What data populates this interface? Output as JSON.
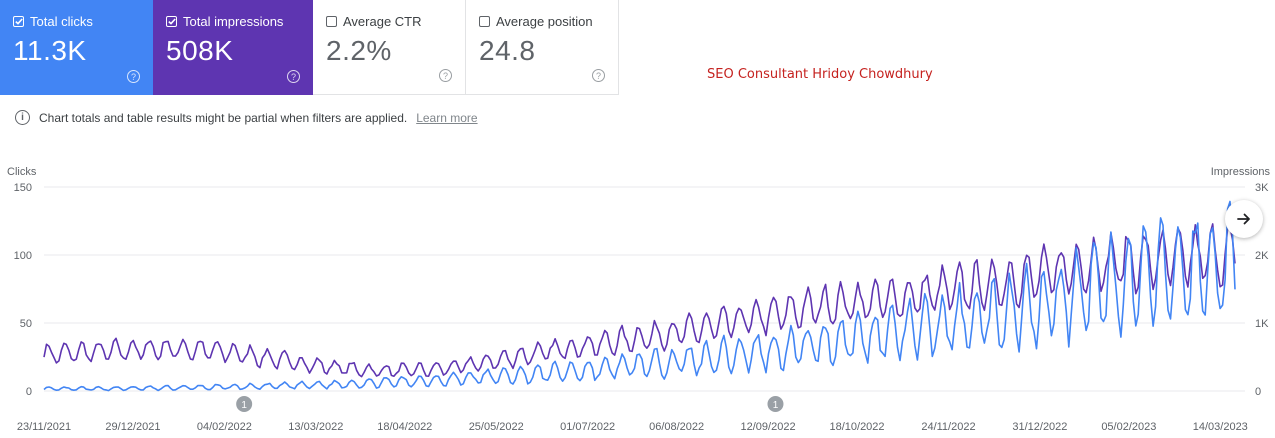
{
  "cards": [
    {
      "id": "clicks",
      "label": "Total clicks",
      "value": "11.3K",
      "checked": true
    },
    {
      "id": "impressions",
      "label": "Total impressions",
      "value": "508K",
      "checked": true
    },
    {
      "id": "ctr",
      "label": "Average CTR",
      "value": "2.2%",
      "checked": false
    },
    {
      "id": "position",
      "label": "Average position",
      "value": "24.8",
      "checked": false
    }
  ],
  "help_glyph": "?",
  "watermark": "SEO Consultant Hridoy Chowdhury",
  "notice": {
    "text": "Chart totals and table results might be partial when filters are applied.",
    "link": "Learn more",
    "icon": "info-icon"
  },
  "next_button": {
    "icon": "arrow-right-icon"
  },
  "colors": {
    "clicks": "#4285f4",
    "impressions": "#5e35b1",
    "grid": "#e8eaed",
    "axis_text": "#5f6368",
    "annotation": "#9aa0a6"
  },
  "chart_data": {
    "type": "line",
    "ylabel_left": "Clicks",
    "ylabel_right": "Impressions",
    "left_ticks": [
      "0",
      "50",
      "100",
      "150"
    ],
    "right_ticks": [
      "0",
      "1K",
      "2K",
      "3K"
    ],
    "ylim_left": [
      0,
      150
    ],
    "ylim_right": [
      0,
      3000
    ],
    "grid": true,
    "x_ticks": [
      "23/11/2021",
      "29/12/2021",
      "04/02/2022",
      "13/03/2022",
      "18/04/2022",
      "25/05/2022",
      "01/07/2022",
      "06/08/2022",
      "12/09/2022",
      "18/10/2022",
      "24/11/2022",
      "31/12/2022",
      "05/02/2023",
      "14/03/2023"
    ],
    "x_range": [
      "23/11/2021",
      "24/03/2023"
    ],
    "annotations": [
      {
        "date": "12/02/2022",
        "label": "1"
      },
      {
        "date": "15/09/2022",
        "label": "1"
      }
    ],
    "series": [
      {
        "name": "Total clicks",
        "axis": "left",
        "values": [
          1.5,
          1.6,
          1.7,
          1.9,
          2.1,
          2.4,
          2.7,
          3,
          3.4,
          3.9,
          4.4,
          5,
          5.8,
          6.6,
          7.5,
          8.7,
          10,
          11,
          12,
          14,
          15,
          17,
          19,
          21,
          23,
          26,
          28,
          30,
          33,
          36,
          39,
          42,
          45,
          48,
          52,
          56,
          60,
          65,
          70,
          75,
          80,
          85,
          88,
          90,
          93
        ]
      },
      {
        "name": "Total impressions",
        "axis": "right",
        "values": [
          540,
          560,
          580,
          600,
          620,
          620,
          600,
          560,
          500,
          440,
          380,
          340,
          300,
          300,
          310,
          340,
          400,
          470,
          540,
          610,
          670,
          720,
          780,
          840,
          900,
          980,
          1060,
          1120,
          1200,
          1270,
          1300,
          1340,
          1380,
          1460,
          1520,
          1560,
          1640,
          1720,
          1820,
          1880,
          1900,
          1920,
          1950,
          1980,
          2000
        ]
      }
    ]
  }
}
